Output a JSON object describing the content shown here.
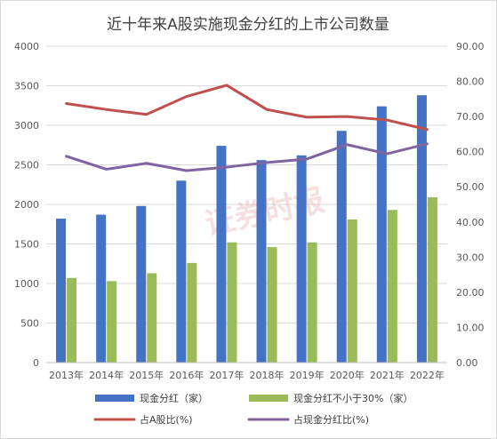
{
  "chart_data": {
    "type": "bar",
    "title": "近十年来A股实施现金分红的上市公司数量",
    "watermark": "证券时报",
    "categories": [
      "2013年",
      "2014年",
      "2015年",
      "2016年",
      "2017年",
      "2018年",
      "2019年",
      "2020年",
      "2021年",
      "2022年"
    ],
    "left_axis": {
      "min": 0,
      "max": 4000,
      "step": 500,
      "ticks": [
        "0",
        "500",
        "1000",
        "1500",
        "2000",
        "2500",
        "3000",
        "3500",
        "4000"
      ]
    },
    "right_axis": {
      "min": 0,
      "max": 90,
      "step": 10,
      "ticks": [
        "0.00",
        "10.00",
        "20.00",
        "30.00",
        "40.00",
        "50.00",
        "60.00",
        "70.00",
        "80.00",
        "90.00"
      ]
    },
    "series": [
      {
        "name": "现金分红（家）",
        "type": "bar",
        "axis": "left",
        "color": "#4472C4",
        "values": [
          1820,
          1870,
          1980,
          2300,
          2740,
          2560,
          2620,
          2930,
          3240,
          3380
        ]
      },
      {
        "name": "现金分红不小于30%（家）",
        "type": "bar",
        "axis": "left",
        "color": "#9BBB59",
        "values": [
          1070,
          1030,
          1130,
          1260,
          1520,
          1460,
          1520,
          1810,
          1930,
          2090
        ]
      },
      {
        "name": "占A股比(%)",
        "type": "line",
        "axis": "right",
        "color": "#C0504D",
        "values": [
          73.7,
          72.0,
          70.6,
          75.7,
          78.9,
          72.0,
          69.8,
          70.0,
          69.0,
          66.3
        ]
      },
      {
        "name": "占现金分红比(%)",
        "type": "line",
        "axis": "right",
        "color": "#8064A2",
        "values": [
          58.7,
          55.0,
          56.7,
          54.6,
          55.6,
          56.9,
          57.9,
          62.0,
          59.4,
          62.2
        ]
      }
    ],
    "legend_position": "bottom",
    "grid": true
  }
}
